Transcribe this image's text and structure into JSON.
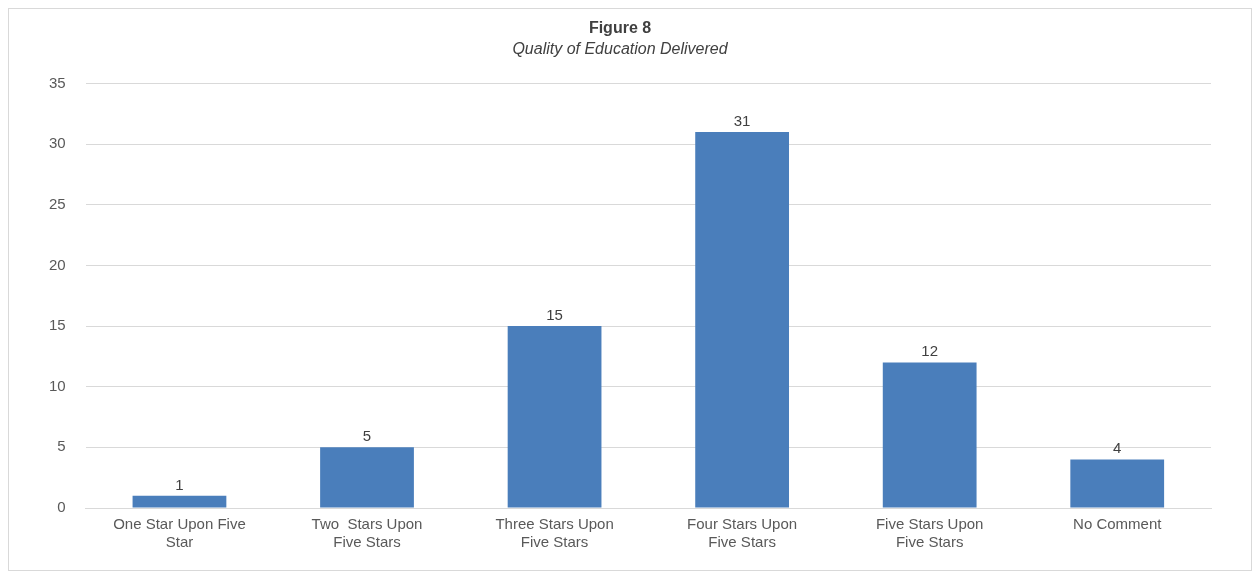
{
  "chart_data": {
    "type": "bar",
    "title": "Figure 8",
    "subtitle": "Quality of Education Delivered",
    "categories": [
      "One Star Upon Five Star",
      "Two  Stars Upon Five Stars",
      "Three Stars Upon Five Stars",
      "Four Stars Upon Five Stars",
      "Five Stars Upon Five Stars",
      "No Comment"
    ],
    "values": [
      1,
      5,
      15,
      31,
      12,
      4
    ],
    "color": "#4a7ebb",
    "ylim": [
      0,
      35
    ],
    "yticks": [
      0,
      5,
      10,
      15,
      20,
      25,
      30,
      35
    ],
    "grid": "y",
    "data_labels": true,
    "legend": false
  }
}
